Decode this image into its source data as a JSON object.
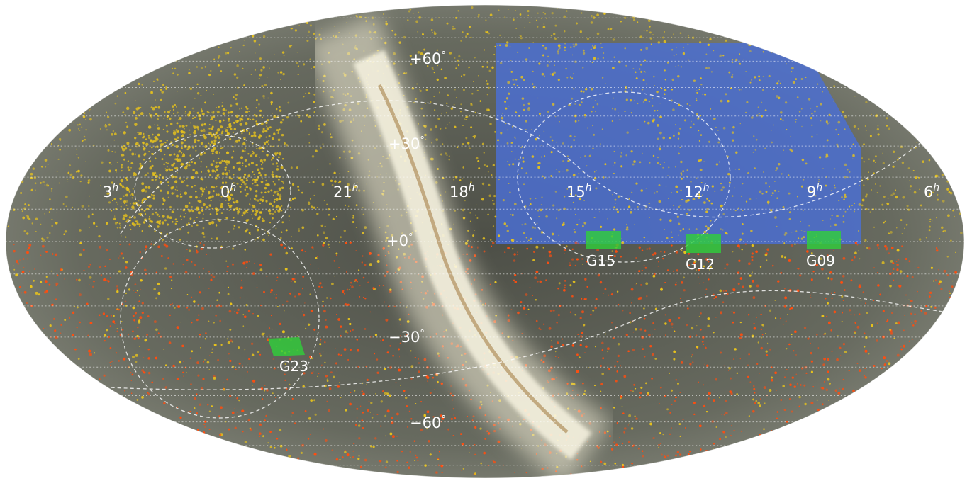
{
  "map": {
    "projection": "mollweide",
    "colors": {
      "background_sky": "#5c5f55",
      "milky_way": "#f3efd9",
      "north_survey": "#4a6fd6",
      "north_points": "#e8c31c",
      "south_points": "#ff4e0f",
      "gama_fields": "#2fd03a",
      "grid": "#ffffff"
    },
    "ra_labels": [
      {
        "hours": 3,
        "text": "3",
        "sup": "h"
      },
      {
        "hours": 0,
        "text": "0",
        "sup": "h"
      },
      {
        "hours": 21,
        "text": "21",
        "sup": "h"
      },
      {
        "hours": 18,
        "text": "18",
        "sup": "h"
      },
      {
        "hours": 15,
        "text": "15",
        "sup": "h"
      },
      {
        "hours": 12,
        "text": "12",
        "sup": "h"
      },
      {
        "hours": 9,
        "text": "9",
        "sup": "h"
      },
      {
        "hours": 6,
        "text": "6",
        "sup": "h"
      }
    ],
    "dec_labels": [
      {
        "deg": 60,
        "text": "+60",
        "sup": "°"
      },
      {
        "deg": 30,
        "text": "+30",
        "sup": "°"
      },
      {
        "deg": 0,
        "text": "+0",
        "sup": "°"
      },
      {
        "deg": -30,
        "text": "−30",
        "sup": "°"
      },
      {
        "deg": -60,
        "text": "−60",
        "sup": "°"
      }
    ],
    "fields": [
      {
        "name": "G15"
      },
      {
        "name": "G12"
      },
      {
        "name": "G09"
      },
      {
        "name": "G23"
      }
    ]
  }
}
